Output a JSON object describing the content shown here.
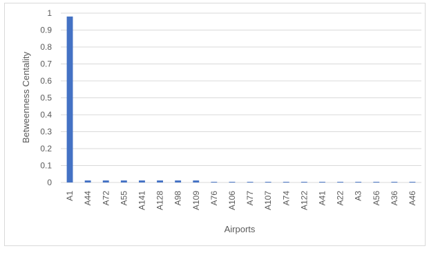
{
  "chart_data": {
    "type": "bar",
    "title": "",
    "xlabel": "Airports",
    "ylabel": "Betweenness Centality",
    "ylim": [
      0,
      1
    ],
    "yticks": [
      "0",
      "0.1",
      "0.2",
      "0.3",
      "0.4",
      "0.5",
      "0.6",
      "0.7",
      "0.8",
      "0.9",
      "1"
    ],
    "grid": true,
    "legend": "none",
    "categories": [
      "A1",
      "A44",
      "A72",
      "A55",
      "A141",
      "A128",
      "A98",
      "A109",
      "A76",
      "A106",
      "A77",
      "A107",
      "A74",
      "A122",
      "A41",
      "A22",
      "A3",
      "A56",
      "A36",
      "A46"
    ],
    "values": [
      0.98,
      0.012,
      0.012,
      0.012,
      0.012,
      0.012,
      0.012,
      0.012,
      0.004,
      0.004,
      0.004,
      0.004,
      0.004,
      0.004,
      0.004,
      0.004,
      0.004,
      0.004,
      0.004,
      0.004
    ],
    "bar_color": "#4472C4",
    "grid_color": "#d9d9d9",
    "text_color": "#595959"
  }
}
